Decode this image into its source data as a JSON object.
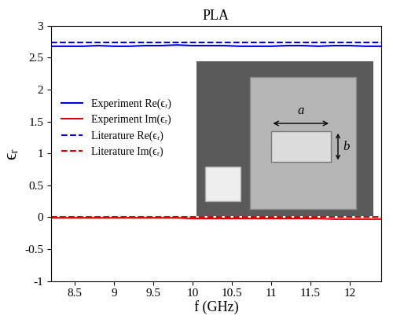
{
  "chart_data": {
    "type": "line",
    "title": "PLA",
    "x_label": "f (GHz)",
    "y_label": "ϵᵣ",
    "x": [
      8.2,
      8.4,
      8.6,
      8.8,
      9.0,
      9.2,
      9.4,
      9.6,
      9.8,
      10.0,
      10.2,
      10.4,
      10.6,
      10.8,
      11.0,
      11.2,
      11.4,
      11.6,
      11.8,
      12.0,
      12.2,
      12.4
    ],
    "series": [
      {
        "name": "Experiment Re(ϵᵣ)",
        "color": "#0000dd",
        "line_style": "solid",
        "values": [
          2.68,
          2.68,
          2.68,
          2.69,
          2.68,
          2.68,
          2.69,
          2.69,
          2.7,
          2.69,
          2.69,
          2.69,
          2.68,
          2.68,
          2.68,
          2.69,
          2.69,
          2.68,
          2.69,
          2.69,
          2.68,
          2.68
        ]
      },
      {
        "name": "Experiment Im(ϵᵣ)",
        "color": "#dd0000",
        "line_style": "solid",
        "values": [
          -0.01,
          -0.01,
          -0.01,
          -0.01,
          -0.01,
          -0.01,
          -0.01,
          -0.01,
          -0.01,
          -0.02,
          -0.02,
          -0.02,
          -0.02,
          -0.02,
          -0.02,
          -0.02,
          -0.02,
          -0.02,
          -0.03,
          -0.03,
          -0.03,
          -0.03
        ]
      },
      {
        "name": "Literature Re(ϵᵣ)",
        "color": "#0000dd",
        "line_style": "dashed",
        "values": [
          2.74,
          2.74,
          2.74,
          2.74,
          2.74,
          2.74,
          2.74,
          2.74,
          2.74,
          2.74,
          2.74,
          2.74,
          2.74,
          2.74,
          2.74,
          2.74,
          2.74,
          2.74,
          2.74,
          2.74,
          2.74,
          2.74
        ]
      },
      {
        "name": "Literature Im(ϵᵣ)",
        "color": "#dd0000",
        "line_style": "dashed",
        "values": [
          0,
          0,
          0,
          0,
          0,
          0,
          0,
          0,
          0,
          0,
          0,
          0,
          0,
          0,
          0,
          0,
          0,
          0,
          0,
          0,
          0,
          0
        ]
      }
    ],
    "xlim": [
      8.2,
      12.4
    ],
    "xticks": [
      8.5,
      9,
      9.5,
      10,
      10.5,
      11,
      11.5,
      12
    ],
    "ylim": [
      -1,
      3
    ],
    "yticks": [
      -1,
      -0.5,
      0,
      0.5,
      1,
      1.5,
      2,
      2.5,
      3
    ],
    "legend": "center left",
    "grid": false,
    "annotations": [
      "a",
      "b"
    ]
  }
}
